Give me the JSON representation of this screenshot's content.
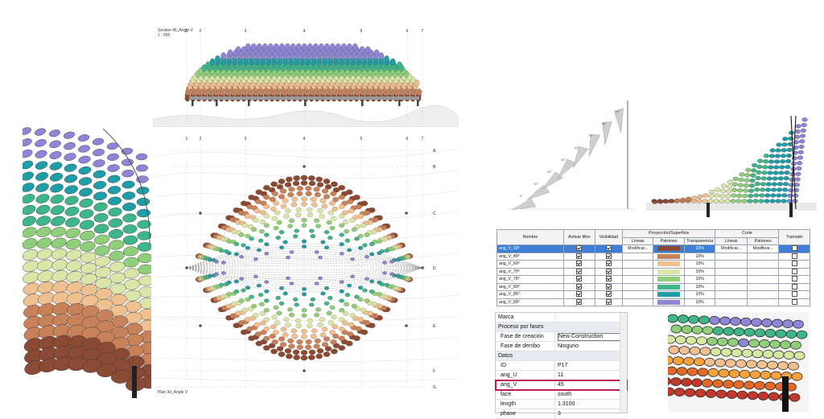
{
  "elevation": {
    "title": "Section 45_Angle V",
    "scale": "1 : 500",
    "gridlines": [
      "1",
      "2",
      "3",
      "4",
      "5",
      "6",
      "7"
    ]
  },
  "plan": {
    "title": "Plan 3d_Angle V",
    "gridlines_top": [
      "1",
      "2",
      "3",
      "4",
      "5",
      "6",
      "7"
    ],
    "gridlines_right": [
      "A",
      "B",
      "C",
      "D",
      "E",
      "F",
      "G"
    ]
  },
  "angle_diagram": {
    "labels": [
      "0°",
      "15°",
      "30°",
      "45°",
      "60°",
      "75°",
      "85°",
      "90°"
    ]
  },
  "filters_table": {
    "headers": {
      "name": "Nombre",
      "enable": "Activar filtro",
      "visibility": "Visibilidad",
      "projection": "Proyección/Superficie",
      "lines": "Líneas",
      "patterns": "Patrones",
      "transparency": "Transparencia",
      "cut": "Corte",
      "cut_lines": "Líneas",
      "cut_patterns": "Patrones",
      "halftone": "Tramado"
    },
    "rows": [
      {
        "name": "ang_V_30º",
        "enable": true,
        "visible": true,
        "lines": "Modificar...",
        "color": "#8a4a33",
        "transparency": "10%",
        "cut_lines": "Modificar...",
        "cut_patterns": "Modificar...",
        "halftone": false,
        "selected": true
      },
      {
        "name": "ang_V_45º",
        "enable": true,
        "visible": true,
        "lines": "",
        "color": "#c8825a",
        "transparency": "10%",
        "cut_lines": "",
        "cut_patterns": "",
        "halftone": false,
        "selected": false
      },
      {
        "name": "ang_V_60º",
        "enable": true,
        "visible": true,
        "lines": "",
        "color": "#f0c190",
        "transparency": "10%",
        "cut_lines": "",
        "cut_patterns": "",
        "halftone": false,
        "selected": false
      },
      {
        "name": "ang_V_70º",
        "enable": true,
        "visible": true,
        "lines": "",
        "color": "#d9e6a8",
        "transparency": "10%",
        "cut_lines": "",
        "cut_patterns": "",
        "halftone": false,
        "selected": false
      },
      {
        "name": "ang_V_75º",
        "enable": true,
        "visible": true,
        "lines": "",
        "color": "#8fcf7a",
        "transparency": "10%",
        "cut_lines": "",
        "cut_patterns": "",
        "halftone": false,
        "selected": false
      },
      {
        "name": "ang_V_80º",
        "enable": true,
        "visible": true,
        "lines": "",
        "color": "#3fb58a",
        "transparency": "10%",
        "cut_lines": "",
        "cut_patterns": "",
        "halftone": false,
        "selected": false
      },
      {
        "name": "ang_V_85º",
        "enable": true,
        "visible": true,
        "lines": "",
        "color": "#1f9ea8",
        "transparency": "10%",
        "cut_lines": "",
        "cut_patterns": "",
        "halftone": false,
        "selected": false
      },
      {
        "name": "ang_V_90º",
        "enable": true,
        "visible": true,
        "lines": "",
        "color": "#8e85d6",
        "transparency": "10%",
        "cut_lines": "",
        "cut_patterns": "",
        "halftone": false,
        "selected": false
      }
    ]
  },
  "properties": {
    "marca": "Marca",
    "group_phases": "Proceso por fases",
    "phase_created_label": "Fase de creación",
    "phase_created_value": "New Construction",
    "phase_demolished_label": "Fase de derribo",
    "phase_demolished_value": "Ninguno",
    "group_data": "Datos",
    "id_label": "ID",
    "id_value": "P17",
    "ang_u_label": "ang_U",
    "ang_u_value": "11",
    "ang_v_label": "ang_V",
    "ang_v_value": "45",
    "face_label": "face",
    "face_value": "south",
    "length_label": "length",
    "length_value": "1.3100",
    "phase_label": "phase",
    "phase_value": "3"
  },
  "colors": {
    "band_30": "#8a4a33",
    "band_45": "#c8825a",
    "band_60": "#f0c190",
    "band_70": "#d9e6a8",
    "band_75": "#8fcf7a",
    "band_80": "#3fb58a",
    "band_85": "#1f9ea8",
    "band_90": "#8e85d6",
    "highlight": "#c2185b",
    "selection": "#3d7fd6"
  }
}
